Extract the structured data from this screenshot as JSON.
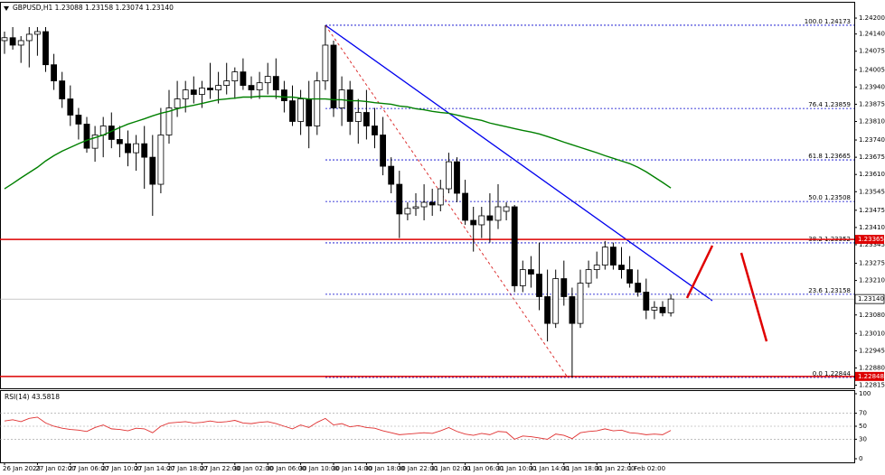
{
  "chart_data": [
    {
      "type": "candlestick",
      "title": "GBPUSD,H1  1.23088 1.23158 1.23074 1.23140",
      "categories": [
        "26 Jan 2023",
        null,
        null,
        null,
        "27 Jan 02:00",
        null,
        null,
        null,
        "27 Jan 06:00",
        null,
        null,
        null,
        "27 Jan 10:00",
        null,
        null,
        null,
        "27 Jan 14:00",
        null,
        null,
        null,
        "27 Jan 18:00",
        null,
        null,
        null,
        "27 Jan 22:00",
        null,
        null,
        null,
        "30 Jan 02:00",
        null,
        null,
        null,
        "30 Jan 06:00",
        null,
        null,
        null,
        "30 Jan 10:00",
        null,
        null,
        null,
        "30 Jan 14:00",
        null,
        null,
        null,
        "30 Jan 18:00",
        null,
        null,
        null,
        "30 Jan 22:00",
        null,
        null,
        null,
        "31 Jan 02:00",
        null,
        null,
        null,
        "31 Jan 06:00",
        null,
        null,
        null,
        "31 Jan 10:00",
        null,
        null,
        null,
        "31 Jan 14:00",
        null,
        null,
        null,
        "31 Jan 18:00",
        null,
        null,
        null,
        "31 Jan 22:00",
        null,
        null,
        null,
        "1 Feb 02:00",
        null,
        null,
        null,
        null,
        null
      ],
      "open": [
        1.24115,
        1.24126,
        1.24098,
        1.24115,
        1.24139,
        1.24149,
        1.24024,
        1.23963,
        1.23895,
        1.23834,
        1.238,
        1.23709,
        1.23759,
        1.23793,
        1.23742,
        1.23726,
        1.23692,
        1.23726,
        1.23675,
        1.23573,
        1.23759,
        1.23861,
        1.23895,
        1.23929,
        1.23912,
        1.23936,
        1.23929,
        1.23946,
        1.23963,
        1.23997,
        1.23946,
        1.23929,
        1.23956,
        1.2398,
        1.23929,
        1.23888,
        1.2381,
        1.23895,
        1.23793,
        1.23963,
        1.24098,
        1.23861,
        1.23929,
        1.2381,
        1.23844,
        1.23793,
        1.23759,
        1.23641,
        1.23573,
        1.23461,
        1.23482,
        1.23488,
        1.23505,
        1.23495,
        1.23556,
        1.23658,
        1.23539,
        1.23437,
        1.2342,
        1.23454,
        1.23437,
        1.23471,
        1.23488,
        1.2319,
        1.23251,
        1.23234,
        1.23149,
        1.23048,
        1.23217,
        1.23149,
        1.23048,
        1.232,
        1.23251,
        1.23268,
        1.23336,
        1.23268,
        1.23251,
        1.232,
        1.23166,
        1.23098,
        1.23109,
        1.23088
      ],
      "high": [
        1.24149,
        1.24166,
        1.24132,
        1.24166,
        1.24166,
        1.24166,
        1.24065,
        1.23997,
        1.23946,
        1.23861,
        1.23827,
        1.23793,
        1.23827,
        1.23844,
        1.23793,
        1.23776,
        1.23759,
        1.23793,
        1.23759,
        1.23861,
        1.23929,
        1.23963,
        1.23963,
        1.2398,
        1.23963,
        1.24031,
        1.23997,
        1.24031,
        1.24014,
        1.24048,
        1.2398,
        1.23997,
        1.24031,
        1.24048,
        1.23963,
        1.23946,
        1.23929,
        1.23963,
        1.23997,
        1.24173,
        1.24115,
        1.2398,
        1.23963,
        1.23895,
        1.23929,
        1.23861,
        1.23827,
        1.23675,
        1.23624,
        1.23505,
        1.23539,
        1.23573,
        1.23556,
        1.2359,
        1.23692,
        1.23675,
        1.2359,
        1.23488,
        1.23488,
        1.23539,
        1.23573,
        1.23505,
        1.23495,
        1.23285,
        1.23302,
        1.23353,
        1.23251,
        1.23251,
        1.23285,
        1.23183,
        1.23251,
        1.23285,
        1.23319,
        1.23359,
        1.23353,
        1.23336,
        1.23302,
        1.23251,
        1.23217,
        1.23132,
        1.23132,
        1.23158
      ],
      "low": [
        1.24065,
        1.24081,
        1.24031,
        1.24014,
        1.24058,
        1.23997,
        1.23929,
        1.23861,
        1.23793,
        1.23742,
        1.23692,
        1.23658,
        1.23675,
        1.23709,
        1.23675,
        1.23641,
        1.23624,
        1.23556,
        1.23454,
        1.23539,
        1.23726,
        1.23827,
        1.23844,
        1.23878,
        1.23861,
        1.23895,
        1.23878,
        1.23912,
        1.23895,
        1.23929,
        1.23895,
        1.23895,
        1.23912,
        1.23895,
        1.23844,
        1.23793,
        1.23759,
        1.23709,
        1.23759,
        1.23929,
        1.23827,
        1.23793,
        1.23759,
        1.23726,
        1.23742,
        1.23709,
        1.23607,
        1.23539,
        1.2337,
        1.23437,
        1.23454,
        1.23437,
        1.23454,
        1.23471,
        1.23539,
        1.23505,
        1.2342,
        1.23319,
        1.2337,
        1.23353,
        1.23404,
        1.23437,
        1.23166,
        1.23166,
        1.23183,
        1.23098,
        1.2298,
        1.23031,
        1.23115,
        1.22844,
        1.23031,
        1.23183,
        1.23217,
        1.23251,
        1.23251,
        1.23217,
        1.23183,
        1.23149,
        1.23064,
        1.23064,
        1.23075,
        1.23074
      ],
      "close": [
        1.24126,
        1.24098,
        1.24115,
        1.24139,
        1.24149,
        1.24024,
        1.23963,
        1.23895,
        1.23834,
        1.238,
        1.23709,
        1.23759,
        1.23793,
        1.23742,
        1.23726,
        1.23692,
        1.23726,
        1.23675,
        1.23573,
        1.23759,
        1.23861,
        1.23895,
        1.23929,
        1.23912,
        1.23936,
        1.23929,
        1.23946,
        1.23963,
        1.23997,
        1.23946,
        1.23929,
        1.23956,
        1.2398,
        1.23929,
        1.23888,
        1.2381,
        1.23895,
        1.23793,
        1.23963,
        1.24098,
        1.23861,
        1.23929,
        1.2381,
        1.23844,
        1.23793,
        1.23759,
        1.23641,
        1.23573,
        1.23461,
        1.23482,
        1.23488,
        1.23505,
        1.23495,
        1.23556,
        1.23658,
        1.23539,
        1.23437,
        1.2342,
        1.23454,
        1.23437,
        1.23488,
        1.23488,
        1.2319,
        1.23251,
        1.23234,
        1.23149,
        1.23048,
        1.23217,
        1.23149,
        1.23048,
        1.232,
        1.23251,
        1.23268,
        1.23336,
        1.23268,
        1.23251,
        1.232,
        1.23166,
        1.23098,
        1.23109,
        1.23088,
        1.2314
      ],
      "bull_color": "#ffffff",
      "bear_color": "#000000",
      "moving_average": {
        "color": "#008000",
        "values": [
          1.23556,
          1.23576,
          1.23597,
          1.23617,
          1.23637,
          1.23661,
          1.23681,
          1.23698,
          1.23712,
          1.23726,
          1.23739,
          1.23749,
          1.23759,
          1.23773,
          1.23787,
          1.238,
          1.2381,
          1.2382,
          1.23831,
          1.23841,
          1.23848,
          1.23858,
          1.23865,
          1.23871,
          1.23878,
          1.23885,
          1.23892,
          1.23895,
          1.23898,
          1.23902,
          1.23902,
          1.23905,
          1.23905,
          1.23905,
          1.23902,
          1.23902,
          1.23898,
          1.23895,
          1.23895,
          1.23895,
          1.23892,
          1.23892,
          1.23888,
          1.23888,
          1.23885,
          1.23881,
          1.23878,
          1.23875,
          1.23868,
          1.23865,
          1.23858,
          1.23854,
          1.23848,
          1.23844,
          1.23841,
          1.23834,
          1.23827,
          1.2382,
          1.23814,
          1.23804,
          1.23797,
          1.2379,
          1.23783,
          1.23776,
          1.2377,
          1.23763,
          1.23753,
          1.23743,
          1.23732,
          1.23722,
          1.23712,
          1.23702,
          1.23692,
          1.23681,
          1.23671,
          1.23661,
          1.23651,
          1.23637,
          1.2362,
          1.236,
          1.2358,
          1.23559
        ]
      },
      "fib_color": "#0000cc",
      "fib_levels": [
        {
          "value": 1.24173,
          "label": "100.0 1.24173"
        },
        {
          "value": 1.23859,
          "label": "76.4 1.23859"
        },
        {
          "value": 1.23665,
          "label": "61.8 1.23665"
        },
        {
          "value": 1.23508,
          "label": "50.0 1.23508"
        },
        {
          "value": 1.23352,
          "label": "38.2 1.23352"
        },
        {
          "value": 1.23158,
          "label": "23.6 1.23158"
        },
        {
          "value": 1.22844,
          "label": "0.0 1.22844"
        }
      ],
      "level_color": "#dd0000",
      "levels": [
        {
          "value": 1.23365,
          "label": "1.23365"
        },
        {
          "value": 1.22848,
          "label": "1.22848"
        }
      ],
      "last_price": {
        "value": 1.2314,
        "label": "1.23140"
      },
      "ylim": [
        1.2281,
        1.24241
      ],
      "yticks": [
        {
          "value": 1.242,
          "label": "1.24200"
        },
        {
          "value": 1.2414,
          "label": "1.24140"
        },
        {
          "value": 1.24075,
          "label": "1.24075"
        },
        {
          "value": 1.24005,
          "label": "1.24005"
        },
        {
          "value": 1.2394,
          "label": "1.23940"
        },
        {
          "value": 1.23875,
          "label": "1.23875"
        },
        {
          "value": 1.2381,
          "label": "1.23810"
        },
        {
          "value": 1.2374,
          "label": "1.23740"
        },
        {
          "value": 1.23675,
          "label": "1.23675"
        },
        {
          "value": 1.2361,
          "label": "1.23610"
        },
        {
          "value": 1.23545,
          "label": "1.23545"
        },
        {
          "value": 1.23475,
          "label": "1.23475"
        },
        {
          "value": 1.2341,
          "label": "1.23410"
        },
        {
          "value": 1.23345,
          "label": "1.23345"
        },
        {
          "value": 1.23275,
          "label": "1.23275"
        },
        {
          "value": 1.2321,
          "label": "1.23210"
        },
        {
          "value": 1.2308,
          "label": "1.23080"
        },
        {
          "value": 1.2301,
          "label": "1.23010"
        },
        {
          "value": 1.22945,
          "label": "1.22945"
        },
        {
          "value": 1.2288,
          "label": "1.22880"
        },
        {
          "value": 1.22815,
          "label": "1.22815"
        }
      ],
      "grid": false
    },
    {
      "type": "line",
      "title": "RSI(14) 43.5818",
      "color": "#e03030",
      "values": [
        58,
        60,
        57,
        62,
        64,
        55,
        50,
        47,
        45,
        44,
        42,
        48,
        52,
        46,
        45,
        43,
        47,
        46,
        40,
        50,
        55,
        56,
        57,
        55,
        56,
        58,
        56,
        57,
        59,
        55,
        54,
        56,
        57,
        54,
        50,
        46,
        52,
        48,
        56,
        62,
        52,
        54,
        49,
        51,
        48,
        47,
        43,
        40,
        37,
        38,
        39,
        40,
        39,
        43,
        48,
        42,
        38,
        36,
        39,
        37,
        42,
        41,
        30,
        35,
        34,
        32,
        30,
        38,
        36,
        31,
        40,
        42,
        43,
        46,
        43,
        44,
        40,
        39,
        37,
        38,
        37,
        43.5818
      ],
      "ylim": [
        0,
        100
      ],
      "yticks": [
        100,
        70,
        50,
        30,
        0
      ],
      "grid": true
    }
  ]
}
